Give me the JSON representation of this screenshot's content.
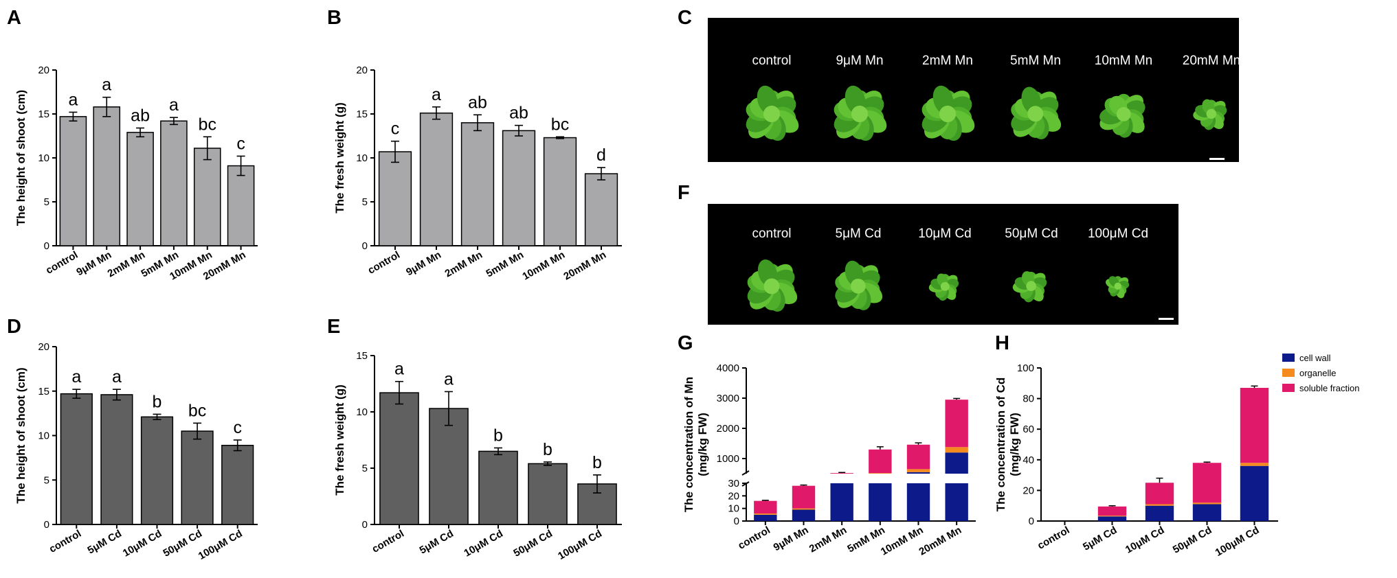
{
  "panels": {
    "A": "A",
    "B": "B",
    "C": "C",
    "D": "D",
    "E": "E",
    "F": "F",
    "G": "G",
    "H": "H"
  },
  "colors": {
    "light_bar": "#a8a8ab",
    "dark_bar": "#606060",
    "cell_wall": "#0d1b8a",
    "organelle": "#f58a1f",
    "soluble_fraction": "#e0196a"
  },
  "photo_C": {
    "labels": [
      "control",
      "9μM Mn",
      "2mM Mn",
      "5mM Mn",
      "10mM Mn",
      "20mM Mn"
    ],
    "plant_health": [
      1.0,
      1.0,
      1.0,
      0.95,
      0.85,
      0.55
    ]
  },
  "photo_F": {
    "labels": [
      "control",
      "5μM Cd",
      "10μM Cd",
      "50μM Cd",
      "100μM Cd"
    ],
    "plant_health": [
      1.0,
      0.95,
      0.5,
      0.6,
      0.35
    ]
  },
  "legend": {
    "cell_wall": "cell wall",
    "organelle": "organelle",
    "soluble_fraction": "soluble fraction"
  },
  "chart_data": [
    {
      "id": "A",
      "type": "bar",
      "ylabel": "The height of shoot (cm)",
      "ylim": [
        0,
        20
      ],
      "yticks": [
        0,
        5,
        10,
        15,
        20
      ],
      "categories": [
        "control",
        "9μM Mn",
        "2mM Mn",
        "5mM Mn",
        "10mM Mn",
        "20mM Mn"
      ],
      "values": [
        14.7,
        15.8,
        12.9,
        14.2,
        11.1,
        9.1
      ],
      "errors": [
        0.5,
        1.1,
        0.5,
        0.4,
        1.3,
        1.1
      ],
      "significance": [
        "a",
        "a",
        "ab",
        "a",
        "bc",
        "c"
      ]
    },
    {
      "id": "B",
      "type": "bar",
      "ylabel": "The fresh weight (g)",
      "ylim": [
        0,
        20
      ],
      "yticks": [
        0,
        5,
        10,
        15,
        20
      ],
      "categories": [
        "control",
        "9μM Mn",
        "2mM Mn",
        "5mM Mn",
        "10mM Mn",
        "20mM Mn"
      ],
      "values": [
        10.7,
        15.1,
        14.0,
        13.1,
        12.3,
        8.2
      ],
      "errors": [
        1.2,
        0.7,
        0.9,
        0.6,
        0.1,
        0.7
      ],
      "significance": [
        "c",
        "a",
        "ab",
        "ab",
        "bc",
        "d"
      ]
    },
    {
      "id": "D",
      "type": "bar",
      "ylabel": "The height of shoot (cm)",
      "ylim": [
        0,
        20
      ],
      "yticks": [
        0,
        5,
        10,
        15,
        20
      ],
      "categories": [
        "control",
        "5μM Cd",
        "10μM Cd",
        "50μM Cd",
        "100μM Cd"
      ],
      "values": [
        14.7,
        14.6,
        12.1,
        10.5,
        8.9
      ],
      "errors": [
        0.5,
        0.6,
        0.3,
        0.9,
        0.6
      ],
      "significance": [
        "a",
        "a",
        "b",
        "bc",
        "c"
      ]
    },
    {
      "id": "E",
      "type": "bar",
      "ylabel": "The fresh weight (g)",
      "ylim": [
        0,
        15
      ],
      "yticks": [
        0,
        5,
        10,
        15
      ],
      "categories": [
        "control",
        "5μM Cd",
        "10μM Cd",
        "50μM Cd",
        "100μM Cd"
      ],
      "values": [
        11.7,
        10.3,
        6.5,
        5.4,
        3.6
      ],
      "errors": [
        1.0,
        1.5,
        0.3,
        0.15,
        0.8
      ],
      "significance": [
        "a",
        "a",
        "b",
        "b",
        "b"
      ]
    },
    {
      "id": "G",
      "type": "bar",
      "stacked": true,
      "broken_axis": true,
      "ylabel_line1": "The concentration of Mn",
      "ylabel_line2": "(mg/kg FW)",
      "lower_range": [
        0,
        30
      ],
      "lower_ticks": [
        0,
        10,
        20,
        30
      ],
      "upper_range": [
        500,
        4000
      ],
      "upper_ticks": [
        1000,
        2000,
        3000,
        4000
      ],
      "categories": [
        "control",
        "9μM Mn",
        "2mM Mn",
        "5mM Mn",
        "10mM Mn",
        "20mM Mn"
      ],
      "series": [
        {
          "name": "cell wall",
          "values": [
            5,
            9,
            120,
            450,
            550,
            1200
          ]
        },
        {
          "name": "organelle",
          "values": [
            1,
            1,
            30,
            70,
            100,
            180
          ]
        },
        {
          "name": "soluble fraction",
          "values": [
            10,
            18,
            370,
            780,
            810,
            1570
          ]
        }
      ],
      "total_errors": [
        0.5,
        0.6,
        20,
        90,
        60,
        40
      ]
    },
    {
      "id": "H",
      "type": "bar",
      "stacked": true,
      "ylabel_line1": "The concentration of Cd",
      "ylabel_line2": "(mg/kg FW)",
      "ylim": [
        0,
        100
      ],
      "yticks": [
        0,
        20,
        40,
        60,
        80,
        100
      ],
      "categories": [
        "control",
        "5μM Cd",
        "10μM Cd",
        "50μM Cd",
        "100μM Cd"
      ],
      "series": [
        {
          "name": "cell wall",
          "values": [
            0,
            3,
            10,
            11,
            36
          ]
        },
        {
          "name": "organelle",
          "values": [
            0,
            0.5,
            1,
            1,
            2
          ]
        },
        {
          "name": "soluble fraction",
          "values": [
            0,
            6,
            14,
            26,
            49
          ]
        }
      ],
      "total_errors": [
        0,
        0.5,
        3,
        0.5,
        1.2
      ]
    }
  ]
}
